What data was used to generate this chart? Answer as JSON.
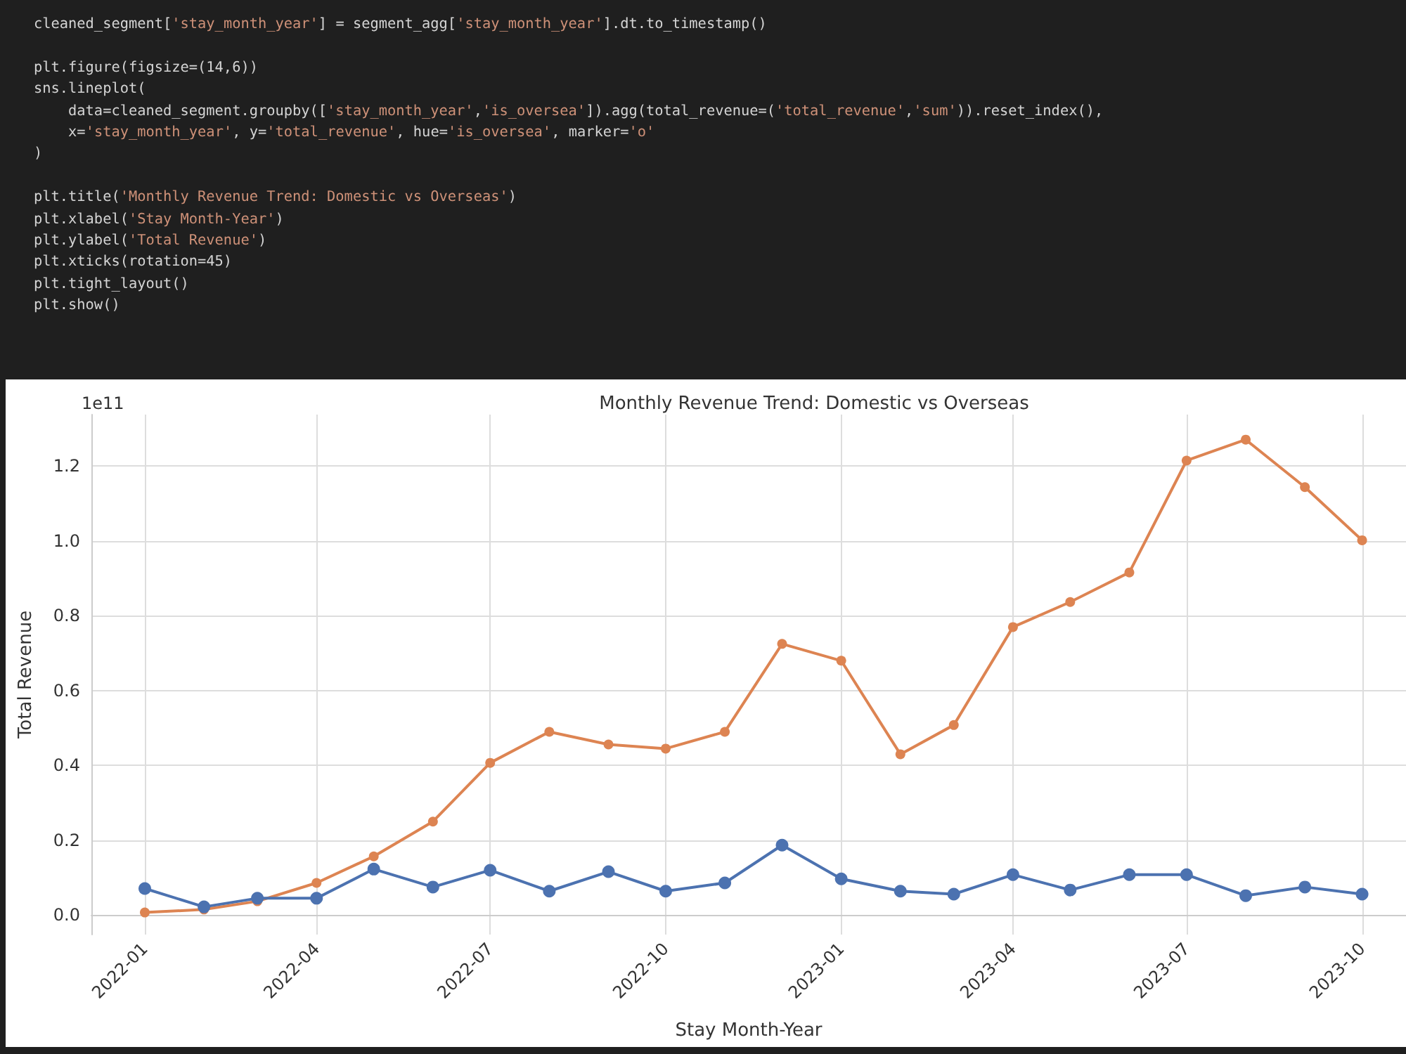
{
  "chart_data": {
    "type": "line",
    "title": "Monthly Revenue Trend: Domestic vs Overseas",
    "xlabel": "Stay Month-Year",
    "ylabel": "Total Revenue",
    "annotations": [
      "1e11",
      "cleaned_segment['stay_month_year'] = segment_agg['stay_month_year'].dt.to_timestamp()",
      "plt.figure(figsize=(14,6))",
      "sns.lineplot(",
      "    data=cleaned_segment.groupby(['stay_month_year','is_oversea']).agg(total_revenue=('total_revenue','sum')).reset_index(),",
      "    x='stay_month_year', y='total_revenue', hue='is_oversea', marker='o'",
      ")",
      "plt.title('Monthly Revenue Trend: Domestic vs Overseas')",
      "plt.xlabel('Stay Month-Year')",
      "plt.ylabel('Total Revenue')",
      "plt.xticks(rotation=45)",
      "plt.tight_layout()",
      "plt.show()"
    ],
    "x": [
      "2022-01",
      "2022-02",
      "2022-03",
      "2022-04",
      "2022-05",
      "2022-06",
      "2022-07",
      "2022-08",
      "2022-09",
      "2022-10",
      "2022-11",
      "2022-12",
      "2023-01",
      "2023-02",
      "2023-03",
      "2023-04",
      "2023-05",
      "2023-06",
      "2023-07",
      "2023-08",
      "2023-09",
      "2023-10"
    ],
    "series": [
      {
        "color": "#4c72b0",
        "values": [
          0.071,
          0.022,
          0.045,
          0.045,
          0.123,
          0.075,
          0.12,
          0.064,
          0.116,
          0.064,
          0.086,
          0.187,
          0.097,
          0.064,
          0.056,
          0.108,
          0.067,
          0.108,
          0.108,
          0.052,
          0.075,
          0.056
        ]
      },
      {
        "color": "#dd8452",
        "values": [
          0.007,
          0.015,
          0.037,
          0.086,
          0.157,
          0.25,
          0.407,
          0.49,
          0.456,
          0.445,
          0.49,
          0.725,
          0.68,
          0.43,
          0.508,
          0.77,
          0.837,
          0.916,
          1.215,
          1.271,
          1.144,
          1.002
        ]
      }
    ],
    "xlim": [
      "2021-12-04",
      "2023-10-24"
    ],
    "xticks": [
      "2022-01",
      "2022-04",
      "2022-07",
      "2022-10",
      "2023-01",
      "2023-04",
      "2023-07",
      "2023-10"
    ],
    "ylim": [
      -0.052,
      1.338
    ],
    "yticks": [
      {
        "value": 0,
        "label": "0.0"
      },
      {
        "value": 0.2,
        "label": "0.2"
      },
      {
        "value": 0.4,
        "label": "0.4"
      },
      {
        "value": 0.6,
        "label": "0.6"
      },
      {
        "value": 0.8,
        "label": "0.8"
      },
      {
        "value": 1,
        "label": "1.0"
      },
      {
        "value": 1.2,
        "label": "1.2"
      }
    ],
    "grid": true,
    "marker": "circle",
    "line_style": "solid"
  }
}
